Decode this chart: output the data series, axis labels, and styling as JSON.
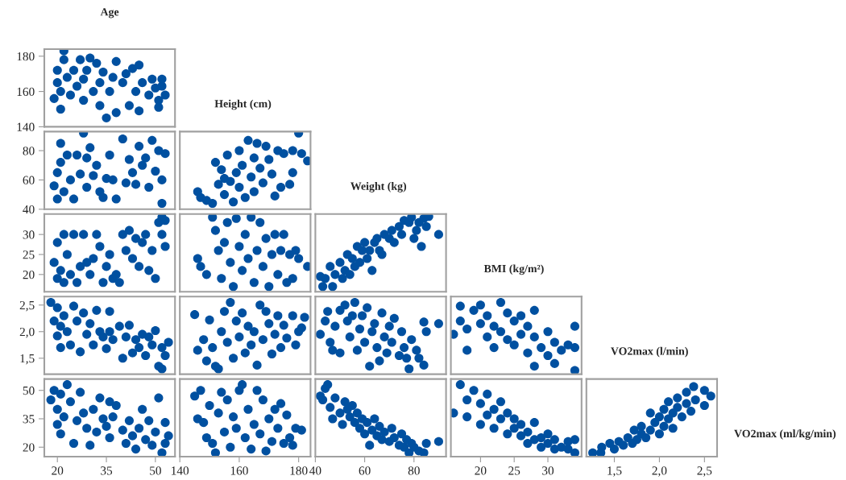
{
  "chart_data": [
    {
      "type": "scatter",
      "title": "Age",
      "ylabel": "Height (cm)",
      "color": "#0050a0",
      "marker": "circle",
      "tick_labels": "y",
      "xlim": [
        16,
        56
      ],
      "ylim": [
        140,
        184
      ],
      "yticks": [
        140,
        160,
        180
      ],
      "x": [
        19,
        20,
        20,
        21,
        21,
        22,
        22,
        23,
        24,
        25,
        26,
        27,
        28,
        28,
        29,
        30,
        31,
        32,
        33,
        33,
        34,
        35,
        36,
        37,
        38,
        38,
        40,
        41,
        42,
        43,
        44,
        45,
        45,
        46,
        48,
        49,
        50,
        51,
        52,
        53,
        51,
        52
      ],
      "values": [
        156,
        165,
        172,
        150,
        160,
        178,
        183,
        168,
        158,
        172,
        163,
        178,
        155,
        167,
        172,
        179,
        160,
        176,
        152,
        165,
        171,
        145,
        160,
        168,
        148,
        177,
        165,
        170,
        152,
        173,
        160,
        175,
        149,
        165,
        158,
        167,
        162,
        155,
        163,
        158,
        151,
        167
      ]
    },
    {
      "type": "scatter",
      "color": "#0050a0",
      "marker": "circle",
      "tick_labels": "y",
      "xlim": [
        16,
        56
      ],
      "ylim": [
        40,
        93
      ],
      "yticks": [
        40,
        60,
        80
      ],
      "x": [
        19,
        20,
        20,
        21,
        21,
        22,
        23,
        24,
        25,
        26,
        27,
        28,
        29,
        29,
        30,
        31,
        32,
        33,
        34,
        35,
        36,
        37,
        38,
        40,
        41,
        42,
        43,
        44,
        45,
        46,
        47,
        48,
        49,
        50,
        51,
        52,
        53,
        52
      ],
      "values": [
        56,
        47,
        65,
        72,
        85,
        52,
        77,
        60,
        47,
        77,
        64,
        92,
        55,
        75,
        82,
        63,
        70,
        52,
        48,
        61,
        77,
        60,
        47,
        88,
        58,
        74,
        65,
        57,
        83,
        70,
        75,
        55,
        87,
        66,
        80,
        44,
        78,
        60
      ]
    },
    {
      "type": "scatter",
      "ylabel": "Weight (kg)",
      "color": "#0050a0",
      "marker": "circle",
      "tick_labels": false,
      "xlim": [
        140,
        184
      ],
      "ylim": [
        40,
        93
      ],
      "x": [
        146,
        147,
        149,
        151,
        152,
        153,
        154,
        155,
        155,
        156,
        157,
        158,
        159,
        160,
        160,
        161,
        162,
        163,
        164,
        165,
        165,
        166,
        167,
        168,
        169,
        170,
        171,
        172,
        173,
        174,
        175,
        177,
        178,
        178,
        180,
        181,
        183
      ],
      "values": [
        52,
        48,
        46,
        44,
        72,
        57,
        67,
        61,
        50,
        77,
        59,
        45,
        65,
        80,
        55,
        70,
        48,
        87,
        62,
        75,
        52,
        85,
        68,
        58,
        83,
        74,
        64,
        49,
        80,
        55,
        78,
        57,
        65,
        80,
        92,
        78,
        73
      ]
    },
    {
      "type": "scatter",
      "color": "#0050a0",
      "marker": "circle",
      "tick_labels": "y",
      "xlim": [
        16,
        56
      ],
      "ylim": [
        15.7,
        35.1
      ],
      "yticks": [
        20,
        25,
        30
      ],
      "x": [
        19,
        20,
        20,
        21,
        22,
        22,
        23,
        24,
        25,
        26,
        27,
        28,
        29,
        30,
        31,
        32,
        33,
        34,
        35,
        36,
        37,
        38,
        39,
        40,
        41,
        42,
        43,
        44,
        45,
        46,
        47,
        48,
        49,
        50,
        51,
        52,
        53,
        52,
        53
      ],
      "values": [
        23,
        19,
        28,
        21,
        30,
        18,
        25,
        20,
        30,
        18,
        22,
        30,
        23,
        20,
        24,
        30,
        27,
        18,
        22,
        25,
        19,
        20,
        18,
        30,
        26,
        31,
        24,
        29,
        22,
        28,
        30,
        21,
        26,
        19,
        33,
        30,
        27,
        34.3,
        33.5
      ]
    },
    {
      "type": "scatter",
      "color": "#0050a0",
      "marker": "circle",
      "tick_labels": false,
      "xlim": [
        140,
        184
      ],
      "ylim": [
        15.7,
        35.1
      ],
      "x": [
        146,
        147,
        149,
        151,
        152,
        153,
        154,
        155,
        156,
        157,
        158,
        159,
        160,
        161,
        162,
        163,
        164,
        165,
        166,
        167,
        168,
        169,
        170,
        171,
        172,
        173,
        174,
        176,
        177,
        178,
        179,
        180,
        183,
        175
      ],
      "values": [
        24,
        22,
        20,
        34.3,
        31,
        26,
        19,
        28,
        33,
        23,
        17,
        34,
        27,
        21,
        30,
        24,
        34.3,
        18,
        26,
        33,
        22,
        29,
        17,
        25,
        30,
        20,
        26,
        18,
        25,
        19,
        26,
        24,
        22,
        30
      ]
    },
    {
      "type": "scatter",
      "ylabel": "BMI (kg/m²)",
      "color": "#0050a0",
      "marker": "circle",
      "tick_labels": false,
      "xlim": [
        40,
        93
      ],
      "ylim": [
        15.7,
        35.1
      ],
      "x": [
        42,
        43,
        44,
        46,
        47,
        48,
        50,
        51,
        52,
        53,
        54,
        55,
        56,
        57,
        58,
        59,
        60,
        61,
        62,
        63,
        64,
        65,
        66,
        67,
        68,
        70,
        71,
        72,
        74,
        75,
        76,
        78,
        79,
        80,
        81,
        82,
        83,
        84,
        85,
        86,
        90
      ],
      "values": [
        19.5,
        17,
        19,
        22,
        17,
        20,
        23,
        19,
        21,
        25,
        20,
        24,
        22,
        27,
        23,
        26,
        28,
        24,
        26,
        21,
        28,
        29,
        26,
        25,
        30,
        29,
        31,
        28,
        32,
        30,
        33.5,
        33,
        34.3,
        29,
        31,
        33,
        27,
        34,
        32,
        34.5,
        30
      ]
    },
    {
      "type": "scatter",
      "color": "#0050a0",
      "marker": "circle",
      "tick_labels": "y",
      "xlim": [
        16,
        56
      ],
      "ylim": [
        1.2,
        2.66
      ],
      "yticks": [
        {
          "value": 1.5,
          "label": "1,5"
        },
        {
          "value": 2.0,
          "label": "2,0"
        },
        {
          "value": 2.5,
          "label": "2,5"
        }
      ],
      "x": [
        18,
        19,
        20,
        20,
        21,
        21,
        22,
        23,
        24,
        25,
        26,
        27,
        28,
        29,
        30,
        31,
        32,
        33,
        34,
        35,
        36,
        36,
        37,
        39,
        40,
        41,
        42,
        43,
        44,
        45,
        46,
        47,
        48,
        49,
        50,
        51,
        52,
        53,
        54,
        52
      ],
      "values": [
        2.55,
        2.2,
        1.92,
        2.45,
        2.1,
        1.7,
        2.3,
        2.0,
        1.75,
        2.48,
        2.2,
        1.62,
        2.35,
        1.95,
        2.15,
        1.75,
        2.4,
        2.0,
        1.9,
        1.68,
        2.38,
        2.0,
        1.85,
        2.1,
        1.5,
        1.9,
        2.12,
        1.6,
        1.85,
        1.7,
        1.95,
        1.55,
        1.9,
        1.75,
        2.02,
        1.35,
        1.3,
        1.55,
        1.8,
        1.7
      ]
    },
    {
      "type": "scatter",
      "color": "#0050a0",
      "marker": "circle",
      "tick_labels": false,
      "xlim": [
        140,
        184
      ],
      "ylim": [
        1.2,
        2.66
      ],
      "x": [
        145,
        146,
        148,
        149,
        150,
        151,
        152,
        153,
        154,
        155,
        156,
        157,
        158,
        159,
        160,
        161,
        162,
        163,
        164,
        165,
        166,
        167,
        168,
        169,
        170,
        171,
        172,
        173,
        174,
        175,
        176,
        178,
        179,
        180,
        182,
        181
      ],
      "values": [
        2.32,
        1.65,
        1.85,
        1.45,
        2.22,
        1.7,
        1.35,
        1.3,
        2.0,
        2.38,
        1.8,
        2.55,
        1.5,
        2.2,
        1.9,
        2.35,
        1.6,
        2.1,
        1.75,
        2.0,
        1.37,
        2.5,
        1.85,
        2.38,
        2.15,
        1.58,
        1.95,
        2.3,
        1.7,
        2.12,
        1.88,
        2.3,
        1.75,
        2.0,
        2.27,
        2.07
      ]
    },
    {
      "type": "scatter",
      "color": "#0050a0",
      "marker": "circle",
      "tick_labels": false,
      "xlim": [
        40,
        93
      ],
      "ylim": [
        1.2,
        2.66
      ],
      "x": [
        42,
        44,
        45,
        46,
        47,
        48,
        50,
        50,
        52,
        53,
        54,
        55,
        56,
        57,
        58,
        59,
        60,
        61,
        62,
        63,
        64,
        65,
        66,
        67,
        68,
        69,
        70,
        71,
        72,
        74,
        75,
        76,
        77,
        78,
        79,
        81,
        82,
        84,
        85,
        84,
        90
      ],
      "values": [
        1.95,
        2.2,
        2.38,
        1.8,
        1.65,
        2.1,
        2.4,
        1.6,
        2.5,
        2.2,
        1.9,
        2.3,
        2.55,
        1.65,
        2.05,
        2.3,
        1.8,
        2.45,
        1.35,
        2.0,
        2.15,
        1.7,
        1.45,
        2.35,
        1.9,
        1.6,
        2.1,
        1.8,
        2.25,
        1.55,
        2.0,
        1.7,
        1.5,
        1.3,
        1.85,
        1.65,
        1.5,
        1.37,
        2.0,
        2.18,
        2.15
      ]
    },
    {
      "type": "scatter",
      "ylabel": "VO2max (l/min)",
      "color": "#0050a0",
      "marker": "circle",
      "tick_labels": false,
      "xlim": [
        15.6,
        35
      ],
      "ylim": [
        1.2,
        2.66
      ],
      "x": [
        16,
        17,
        17,
        18,
        18,
        19,
        20,
        20,
        21,
        21,
        22,
        22,
        23,
        23,
        24,
        24,
        25,
        25,
        26,
        26,
        27,
        27,
        28,
        28,
        28,
        29,
        30,
        30,
        31,
        31,
        32,
        34,
        34,
        34,
        33
      ],
      "values": [
        1.95,
        2.2,
        2.48,
        2.05,
        1.65,
        2.4,
        2.15,
        2.5,
        1.9,
        2.3,
        2.1,
        1.7,
        2.55,
        2.0,
        1.85,
        2.35,
        2.2,
        1.75,
        1.95,
        2.3,
        1.6,
        2.1,
        1.35,
        2.4,
        1.9,
        1.7,
        2.0,
        1.55,
        1.8,
        1.4,
        1.65,
        2.1,
        1.7,
        1.27,
        1.75
      ]
    },
    {
      "type": "scatter",
      "color": "#0050a0",
      "marker": "circle",
      "xlim": [
        16,
        56
      ],
      "ylim": [
        15,
        56
      ],
      "xticks": [
        20,
        35,
        50
      ],
      "yticks": [
        20,
        35,
        50
      ],
      "x": [
        18,
        19,
        20,
        20,
        21,
        21,
        22,
        23,
        24,
        25,
        26,
        27,
        28,
        29,
        30,
        31,
        32,
        33,
        34,
        35,
        36,
        36,
        37,
        38,
        40,
        41,
        42,
        43,
        44,
        45,
        46,
        47,
        48,
        49,
        50,
        51,
        52,
        53,
        54,
        53
      ],
      "values": [
        45,
        50,
        32,
        40,
        27,
        48,
        36,
        53,
        44,
        22,
        34,
        49,
        38,
        30,
        21,
        40,
        28,
        46,
        35,
        31,
        44,
        25,
        36,
        42,
        29,
        22,
        34,
        26,
        19,
        30,
        40,
        24,
        34,
        21,
        28,
        46,
        17,
        22,
        26,
        33
      ]
    },
    {
      "type": "scatter",
      "color": "#0050a0",
      "marker": "circle",
      "tick_labels": "x",
      "xlim": [
        140,
        184
      ],
      "ylim": [
        15,
        56
      ],
      "xticks": [
        140,
        160,
        180
      ],
      "x": [
        145,
        146,
        147,
        148,
        149,
        150,
        151,
        152,
        153,
        154,
        155,
        156,
        157,
        158,
        159,
        160,
        161,
        162,
        163,
        164,
        165,
        166,
        167,
        168,
        169,
        170,
        171,
        172,
        173,
        174,
        175,
        176,
        177,
        178,
        179,
        181
      ],
      "values": [
        47,
        35,
        50,
        33,
        25,
        42,
        22,
        17,
        38,
        49,
        28,
        45,
        20,
        36,
        30,
        50,
        53,
        25,
        40,
        19,
        32,
        50,
        27,
        45,
        18,
        35,
        23,
        40,
        30,
        43,
        22,
        37,
        25,
        21,
        30,
        29
      ]
    },
    {
      "type": "scatter",
      "color": "#0050a0",
      "marker": "circle",
      "tick_labels": "x",
      "xlim": [
        40,
        93
      ],
      "ylim": [
        15,
        56
      ],
      "xticks": [
        40,
        60,
        80
      ],
      "x": [
        42,
        43,
        44,
        45,
        46,
        47,
        48,
        50,
        51,
        52,
        53,
        54,
        55,
        56,
        57,
        58,
        59,
        60,
        61,
        62,
        63,
        64,
        65,
        66,
        67,
        68,
        70,
        71,
        72,
        74,
        75,
        76,
        77,
        78,
        79,
        80,
        82,
        84,
        85,
        90
      ],
      "values": [
        47,
        45,
        51,
        53,
        41,
        35,
        46,
        38,
        32,
        44,
        40,
        36,
        42,
        33,
        38,
        30,
        35,
        27,
        33,
        21,
        29,
        35,
        26,
        31,
        24,
        28,
        23,
        30,
        25,
        21,
        27,
        20,
        24,
        17,
        22,
        20,
        18,
        17,
        22,
        23
      ]
    },
    {
      "type": "scatter",
      "color": "#0050a0",
      "marker": "circle",
      "tick_labels": "x",
      "xlim": [
        15.6,
        35
      ],
      "ylim": [
        15,
        56
      ],
      "xticks": [
        20,
        25,
        30
      ],
      "x": [
        16,
        17,
        18,
        18,
        19,
        20,
        20,
        21,
        21,
        22,
        22,
        23,
        23,
        24,
        24,
        25,
        25,
        26,
        26,
        27,
        27,
        28,
        28,
        29,
        29,
        30,
        30,
        31,
        31,
        32,
        33,
        34,
        34,
        33
      ],
      "values": [
        38,
        53,
        45,
        36,
        50,
        43,
        32,
        48,
        37,
        40,
        30,
        44,
        35,
        38,
        27,
        35,
        30,
        26,
        32,
        28,
        22,
        33,
        24,
        25,
        20,
        22,
        27,
        19,
        24,
        20,
        23,
        24,
        17,
        19
      ]
    },
    {
      "type": "scatter",
      "ylabel": "VO2max (ml/kg/min)",
      "color": "#0050a0",
      "marker": "circle",
      "tick_labels": "x",
      "xlim": [
        1.19,
        2.64
      ],
      "ylim": [
        15,
        56
      ],
      "xticks": [
        {
          "value": 1.5,
          "label": "1,5"
        },
        {
          "value": 2.0,
          "label": "2,0"
        },
        {
          "value": 2.5,
          "label": "2,5"
        }
      ],
      "x": [
        1.26,
        1.35,
        1.36,
        1.45,
        1.5,
        1.55,
        1.6,
        1.65,
        1.7,
        1.72,
        1.75,
        1.8,
        1.8,
        1.85,
        1.9,
        1.9,
        1.95,
        2.0,
        2.0,
        2.05,
        2.05,
        2.1,
        2.1,
        2.15,
        2.15,
        2.2,
        2.2,
        2.25,
        2.3,
        2.3,
        2.35,
        2.38,
        2.4,
        2.5,
        2.5,
        2.57
      ],
      "values": [
        17,
        17,
        20,
        22,
        19,
        23,
        21,
        25,
        22,
        29,
        24,
        27,
        31,
        25,
        29,
        38,
        33,
        27,
        36,
        31,
        40,
        35,
        44,
        30,
        38,
        41,
        46,
        36,
        43,
        49,
        39,
        52,
        45,
        50,
        42,
        47
      ]
    }
  ]
}
